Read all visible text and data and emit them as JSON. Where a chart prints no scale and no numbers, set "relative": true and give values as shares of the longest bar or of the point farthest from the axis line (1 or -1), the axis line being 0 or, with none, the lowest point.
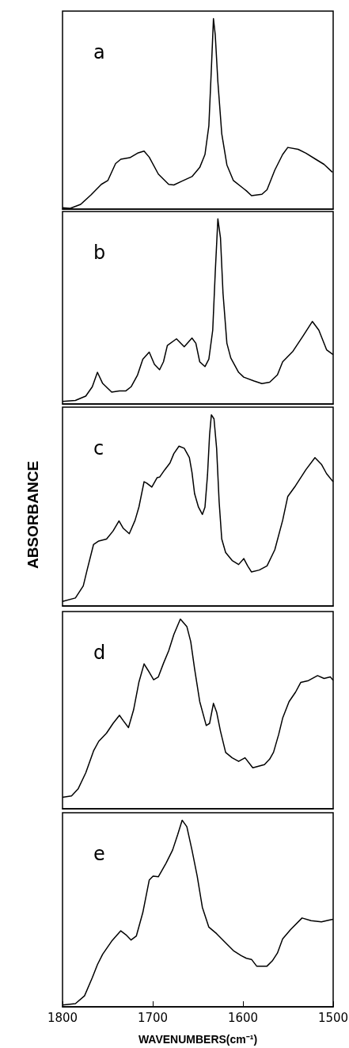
{
  "chart_data": [
    {
      "type": "line",
      "relative": true,
      "color": "#000000",
      "xlim": [
        1800,
        1500
      ],
      "tick_labels": false,
      "annotations": [
        "a"
      ],
      "x": [
        1800,
        1791.4,
        1779.9,
        1768.4,
        1757.0,
        1749.8,
        1741.2,
        1735.4,
        1725.4,
        1716.8,
        1709.6,
        1703.9,
        1693.8,
        1682.3,
        1676.6,
        1668.0,
        1656.5,
        1647.9,
        1642.1,
        1637.8,
        1635.0,
        1632.7,
        1630.7,
        1627.8,
        1623.5,
        1617.8,
        1610.6,
        1599.1,
        1596.2,
        1590.5,
        1579.0,
        1573.3,
        1564.7,
        1556.0,
        1550.3,
        1538.8,
        1530.2,
        1518.7,
        1510.1,
        1500.9
      ],
      "values": [
        0.007,
        0.004,
        0.025,
        0.075,
        0.13,
        0.15,
        0.239,
        0.262,
        0.27,
        0.294,
        0.305,
        0.273,
        0.184,
        0.13,
        0.127,
        0.146,
        0.171,
        0.219,
        0.287,
        0.437,
        0.738,
        1.0,
        0.915,
        0.669,
        0.396,
        0.232,
        0.15,
        0.107,
        0.096,
        0.071,
        0.078,
        0.102,
        0.205,
        0.287,
        0.324,
        0.314,
        0.294,
        0.26,
        0.235,
        0.194
      ]
    },
    {
      "type": "line",
      "relative": true,
      "color": "#000000",
      "xlim": [
        1800,
        1500
      ],
      "tick_labels": false,
      "annotations": [
        "b"
      ],
      "x": [
        1800,
        1785.7,
        1774.2,
        1767.0,
        1761.3,
        1755.5,
        1745.5,
        1736.9,
        1729.7,
        1724.0,
        1716.8,
        1711.0,
        1703.9,
        1698.1,
        1692.4,
        1688.1,
        1683.8,
        1673.7,
        1665.1,
        1656.5,
        1652.2,
        1647.9,
        1642.1,
        1637.8,
        1633.5,
        1630.7,
        1627.8,
        1624.9,
        1622.1,
        1617.8,
        1613.5,
        1604.8,
        1599.1,
        1587.6,
        1579.0,
        1570.4,
        1561.8,
        1556.0,
        1544.6,
        1533.1,
        1523.1,
        1515.9,
        1507.3,
        1500.1
      ],
      "values": [
        0.014,
        0.019,
        0.043,
        0.093,
        0.171,
        0.111,
        0.064,
        0.071,
        0.071,
        0.093,
        0.157,
        0.242,
        0.28,
        0.214,
        0.185,
        0.228,
        0.316,
        0.352,
        0.309,
        0.356,
        0.328,
        0.228,
        0.202,
        0.242,
        0.399,
        0.712,
        1.0,
        0.897,
        0.598,
        0.328,
        0.249,
        0.171,
        0.145,
        0.124,
        0.11,
        0.118,
        0.157,
        0.228,
        0.285,
        0.37,
        0.446,
        0.399,
        0.293,
        0.267
      ]
    },
    {
      "type": "line",
      "relative": true,
      "color": "#000000",
      "xlim": [
        1800,
        1500
      ],
      "tick_labels": false,
      "annotations": [
        "c"
      ],
      "ylabel": "ABSORBANCE",
      "x": [
        1800,
        1785.7,
        1777.0,
        1772.7,
        1765.6,
        1759.8,
        1751.2,
        1744.0,
        1737.4,
        1732.6,
        1726.0,
        1719.6,
        1715.3,
        1709.6,
        1706.7,
        1701.0,
        1695.2,
        1692.4,
        1686.6,
        1680.9,
        1676.6,
        1670.9,
        1665.1,
        1659.4,
        1656.5,
        1653.6,
        1649.3,
        1645.0,
        1642.1,
        1639.3,
        1637.0,
        1635.0,
        1632.1,
        1629.2,
        1626.4,
        1623.5,
        1619.2,
        1612.0,
        1604.8,
        1599.1,
        1594.8,
        1590.5,
        1581.9,
        1573.3,
        1564.7,
        1556.0,
        1550.3,
        1541.7,
        1530.2,
        1520.2,
        1513.0,
        1507.3,
        1500.1
      ],
      "values": [
        0.024,
        0.042,
        0.105,
        0.189,
        0.322,
        0.34,
        0.35,
        0.392,
        0.445,
        0.406,
        0.378,
        0.448,
        0.518,
        0.65,
        0.643,
        0.622,
        0.671,
        0.674,
        0.713,
        0.748,
        0.797,
        0.836,
        0.825,
        0.776,
        0.699,
        0.587,
        0.517,
        0.479,
        0.517,
        0.685,
        0.895,
        1.0,
        0.979,
        0.825,
        0.545,
        0.35,
        0.28,
        0.238,
        0.217,
        0.248,
        0.21,
        0.178,
        0.188,
        0.21,
        0.294,
        0.448,
        0.573,
        0.629,
        0.713,
        0.776,
        0.741,
        0.692,
        0.65
      ]
    },
    {
      "type": "line",
      "relative": true,
      "color": "#000000",
      "xlim": [
        1800,
        1500
      ],
      "tick_labels": false,
      "annotations": [
        "d"
      ],
      "x": [
        1800,
        1790.0,
        1782.8,
        1774.2,
        1765.6,
        1759.8,
        1751.2,
        1744.0,
        1736.9,
        1732.6,
        1726.9,
        1721.2,
        1715.4,
        1709.6,
        1705.3,
        1699.0,
        1693.8,
        1688.1,
        1682.3,
        1676.6,
        1669.4,
        1662.2,
        1657.9,
        1653.6,
        1647.9,
        1640.7,
        1637.0,
        1632.7,
        1629.2,
        1624.9,
        1619.2,
        1612.0,
        1604.8,
        1597.7,
        1589.1,
        1576.2,
        1570.4,
        1566.1,
        1560.4,
        1556.0,
        1548.9,
        1541.7,
        1536.0,
        1527.4,
        1517.3,
        1510.1,
        1503.0,
        1500.1
      ],
      "values": [
        0.061,
        0.068,
        0.104,
        0.19,
        0.305,
        0.356,
        0.399,
        0.45,
        0.493,
        0.464,
        0.428,
        0.522,
        0.666,
        0.764,
        0.731,
        0.68,
        0.695,
        0.767,
        0.833,
        0.919,
        1.0,
        0.961,
        0.882,
        0.738,
        0.565,
        0.439,
        0.45,
        0.556,
        0.51,
        0.409,
        0.297,
        0.269,
        0.25,
        0.269,
        0.216,
        0.233,
        0.262,
        0.298,
        0.392,
        0.478,
        0.565,
        0.615,
        0.666,
        0.676,
        0.702,
        0.687,
        0.695,
        0.677
      ]
    },
    {
      "type": "line",
      "relative": true,
      "color": "#000000",
      "xlim": [
        1800,
        1500
      ],
      "xticks": [
        1800,
        1700,
        1600,
        1500
      ],
      "tick_labels": "x",
      "annotations": [
        "e"
      ],
      "xlabel": "WAVENUMBERS(cm⁻¹)",
      "x": [
        1800,
        1785.7,
        1775.6,
        1767.0,
        1761.3,
        1755.5,
        1745.5,
        1735.4,
        1729.7,
        1724.0,
        1718.2,
        1711.0,
        1703.9,
        1699.6,
        1693.8,
        1685.2,
        1678.0,
        1672.3,
        1667.4,
        1662.2,
        1656.5,
        1650.7,
        1645.0,
        1637.8,
        1629.2,
        1619.2,
        1610.6,
        1602.0,
        1596.2,
        1590.5,
        1584.8,
        1573.3,
        1567.5,
        1561.8,
        1556.0,
        1547.4,
        1534.5,
        1524.5,
        1513.0,
        1504.4,
        1500.1
      ],
      "values": [
        0.01,
        0.017,
        0.059,
        0.156,
        0.226,
        0.282,
        0.352,
        0.407,
        0.386,
        0.358,
        0.379,
        0.505,
        0.679,
        0.7,
        0.697,
        0.77,
        0.84,
        0.923,
        1.0,
        0.965,
        0.84,
        0.7,
        0.533,
        0.427,
        0.392,
        0.343,
        0.301,
        0.274,
        0.26,
        0.254,
        0.218,
        0.218,
        0.246,
        0.288,
        0.364,
        0.413,
        0.476,
        0.462,
        0.455,
        0.465,
        0.469
      ]
    }
  ]
}
